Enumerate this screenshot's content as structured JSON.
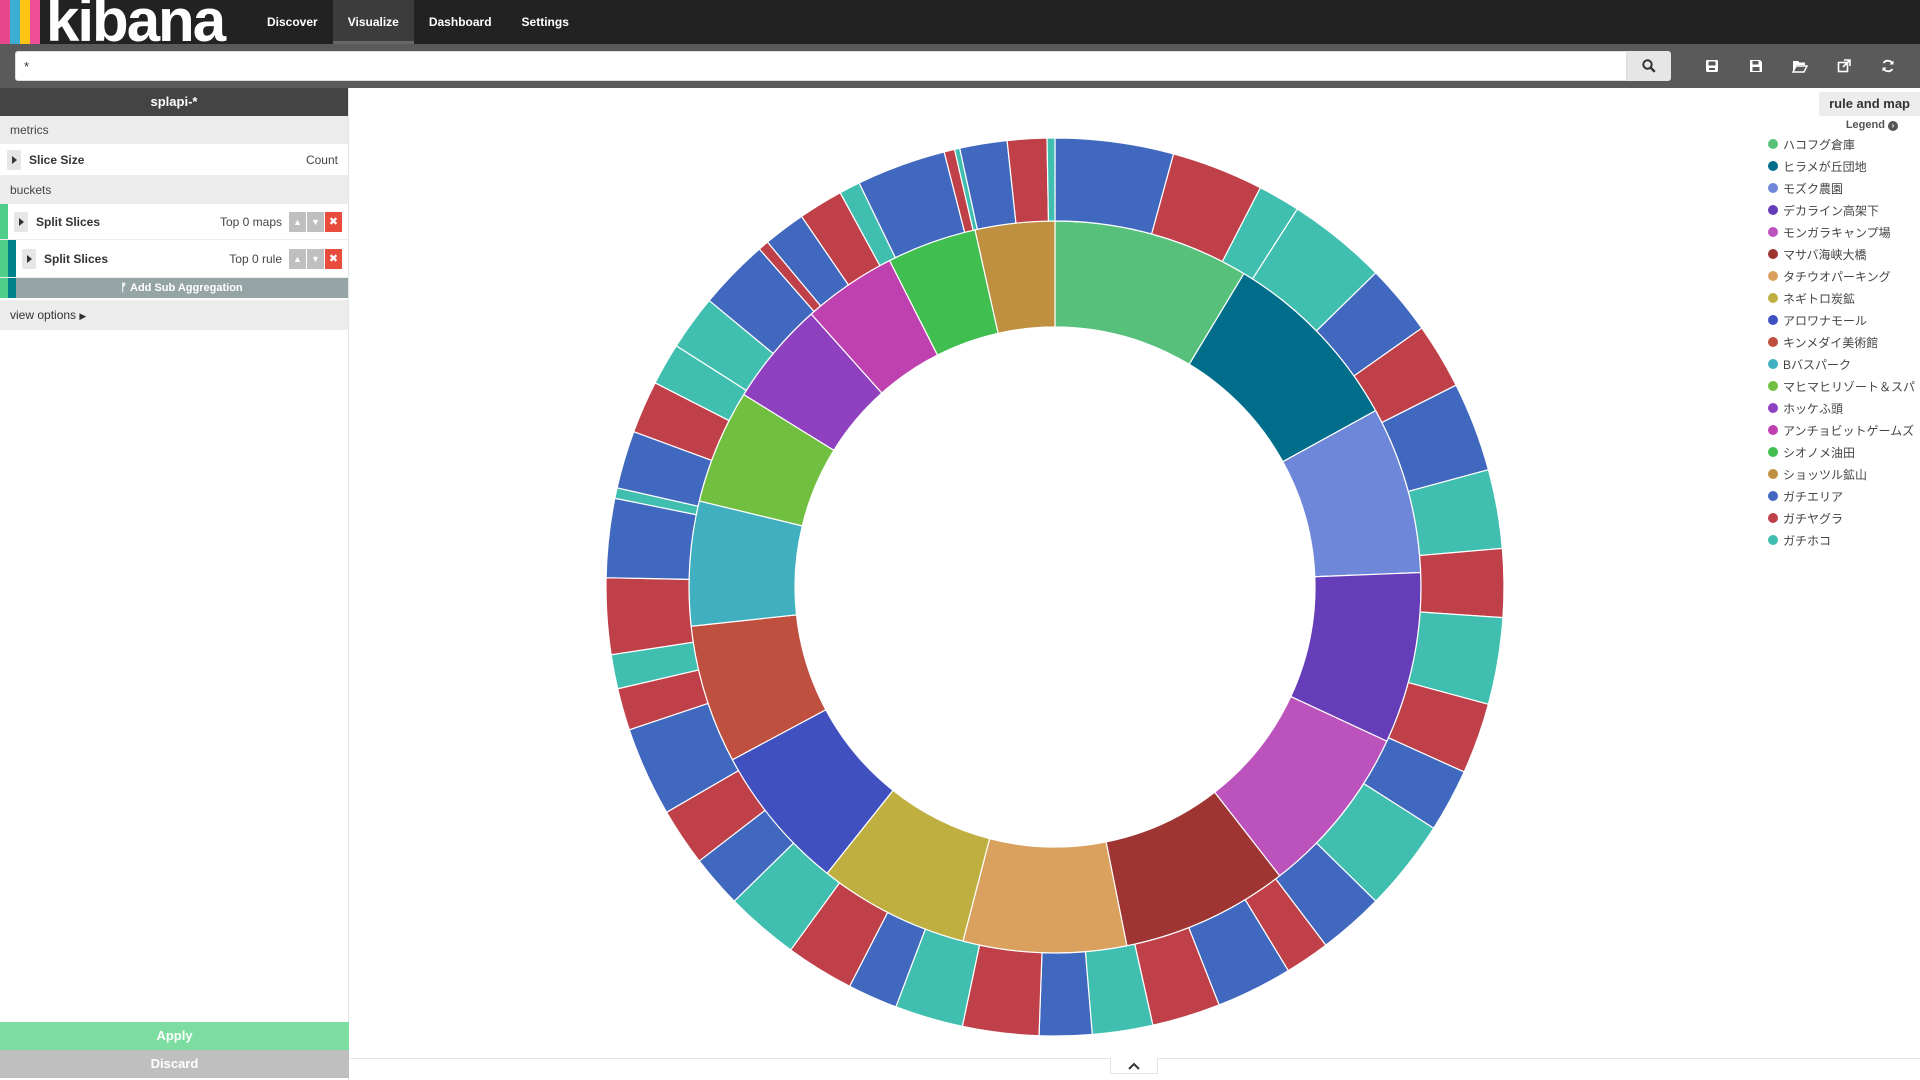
{
  "app": {
    "logo_text": "kibana",
    "logo_stripes": [
      "#e8488b",
      "#3caed2",
      "#fec514",
      "#8cc63e",
      "#f04e98",
      "#00bfb3"
    ]
  },
  "nav": {
    "items": [
      {
        "label": "Discover",
        "active": false
      },
      {
        "label": "Visualize",
        "active": true
      },
      {
        "label": "Dashboard",
        "active": false
      },
      {
        "label": "Settings",
        "active": false
      }
    ]
  },
  "search": {
    "value": "*",
    "button_icon": "search-icon",
    "tool_icons": [
      "new-visualization-icon",
      "save-icon",
      "open-icon",
      "share-icon",
      "refresh-icon"
    ]
  },
  "sidebar": {
    "index_pattern": "splapi-*",
    "metrics_header": "metrics",
    "metric": {
      "label": "Slice Size",
      "value": "Count"
    },
    "buckets_header": "buckets",
    "buckets": [
      {
        "label": "Split Slices",
        "summary": "Top 0 maps",
        "color": "#4fce8a"
      },
      {
        "label": "Split Slices",
        "summary": "Top 0 rule",
        "color": "#00828c"
      }
    ],
    "add_sub_label": "Add Sub Aggregation",
    "view_options": "view options",
    "apply": "Apply",
    "discard": "Discard"
  },
  "chart_data": {
    "type": "pie",
    "donut": true,
    "title": "rule and map",
    "legend_toggle": "Legend",
    "legend": [
      {
        "label": "ハコフグ倉庫",
        "color": "#57c17b"
      },
      {
        "label": "ヒラメが丘団地",
        "color": "#006e8a"
      },
      {
        "label": "モズク農園",
        "color": "#6f87d8"
      },
      {
        "label": "デカライン高架下",
        "color": "#663db8"
      },
      {
        "label": "モンガラキャンプ場",
        "color": "#bc52bc"
      },
      {
        "label": "マサバ海峡大橋",
        "color": "#9e3533"
      },
      {
        "label": "タチウオパーキング",
        "color": "#daa05d"
      },
      {
        "label": "ネギトロ炭鉱",
        "color": "#bfaf40"
      },
      {
        "label": "アロワナモール",
        "color": "#4050bf"
      },
      {
        "label": "キンメダイ美術館",
        "color": "#bf5040"
      },
      {
        "label": "Bバスパーク",
        "color": "#40afbf"
      },
      {
        "label": "マヒマヒリゾート＆スパ",
        "color": "#70bf40"
      },
      {
        "label": "ホッケふ頭",
        "color": "#8f40bf"
      },
      {
        "label": "アンチョビットゲームズ",
        "color": "#bf40af"
      },
      {
        "label": "シオノメ油田",
        "color": "#40bf50"
      },
      {
        "label": "ショッツル鉱山",
        "color": "#bf9040"
      },
      {
        "label": "ガチエリア",
        "color": "#4068bf"
      },
      {
        "label": "ガチヤグラ",
        "color": "#bf4048"
      },
      {
        "label": "ガチホコ",
        "color": "#40bfb0"
      }
    ],
    "inner": [
      {
        "label": "ハコフグ倉庫",
        "value": 9.6
      },
      {
        "label": "ヒラメが丘団地",
        "value": 9.3
      },
      {
        "label": "モズク農園",
        "value": 8.2
      },
      {
        "label": "デカライン高架下",
        "value": 8.4
      },
      {
        "label": "モンガラキャンプ場",
        "value": 8.4
      },
      {
        "label": "マサバ海峡大橋",
        "value": 8.2
      },
      {
        "label": "タチウオパーキング",
        "value": 8.0
      },
      {
        "label": "ネギトロ炭鉱",
        "value": 7.4
      },
      {
        "label": "アロワナモール",
        "value": 7.2
      },
      {
        "label": "キンメダイ美術館",
        "value": 6.8
      },
      {
        "label": "Bバスパーク",
        "value": 6.1
      },
      {
        "label": "マヒマヒリゾート＆スパ",
        "value": 5.6
      },
      {
        "label": "ホッケふ頭",
        "value": 5.1
      },
      {
        "label": "アンチョビットゲームズ",
        "value": 4.6
      },
      {
        "label": "シオノメ油田",
        "value": 4.4
      },
      {
        "label": "ショッツル鉱山",
        "value": 3.9
      }
    ],
    "outer": [
      {
        "label": "ガチエリア",
        "value": 4.5
      },
      {
        "label": "ガチヤグラ",
        "value": 3.5
      },
      {
        "label": "ガチホコ",
        "value": 1.6
      },
      {
        "label": "ガチホコ",
        "value": 3.8
      },
      {
        "label": "ガチエリア",
        "value": 2.7
      },
      {
        "label": "ガチヤグラ",
        "value": 2.5
      },
      {
        "label": "ガチエリア",
        "value": 3.4
      },
      {
        "label": "ガチホコ",
        "value": 3.0
      },
      {
        "label": "ガチヤグラ",
        "value": 2.6
      },
      {
        "label": "ガチホコ",
        "value": 3.3
      },
      {
        "label": "ガチヤグラ",
        "value": 2.7
      },
      {
        "label": "ガチエリア",
        "value": 2.4
      },
      {
        "label": "ガチホコ",
        "value": 3.5
      },
      {
        "label": "ガチエリア",
        "value": 2.5
      },
      {
        "label": "ガチヤグラ",
        "value": 1.7
      },
      {
        "label": "ガチエリア",
        "value": 2.9
      },
      {
        "label": "ガチヤグラ",
        "value": 2.6
      },
      {
        "label": "ガチホコ",
        "value": 2.3
      },
      {
        "label": "ガチエリア",
        "value": 2.0
      },
      {
        "label": "ガチヤグラ",
        "value": 2.9
      },
      {
        "label": "ガチホコ",
        "value": 2.6
      },
      {
        "label": "ガチエリア",
        "value": 1.9
      },
      {
        "label": "ガチヤグラ",
        "value": 2.6
      },
      {
        "label": "ガチホコ",
        "value": 2.8
      },
      {
        "label": "ガチエリア",
        "value": 2.0
      },
      {
        "label": "ガチヤグラ",
        "value": 2.2
      },
      {
        "label": "ガチエリア",
        "value": 3.4
      },
      {
        "label": "ガチヤグラ",
        "value": 1.6
      },
      {
        "label": "ガチホコ",
        "value": 1.3
      },
      {
        "label": "ガチヤグラ",
        "value": 2.9
      },
      {
        "label": "ガチエリア",
        "value": 3.0
      },
      {
        "label": "ガチホコ",
        "value": 0.4
      },
      {
        "label": "ガチエリア",
        "value": 2.2
      },
      {
        "label": "ガチヤグラ",
        "value": 2.0
      },
      {
        "label": "ガチホコ",
        "value": 1.6
      },
      {
        "label": "ガチホコ",
        "value": 2.1
      },
      {
        "label": "ガチエリア",
        "value": 2.7
      },
      {
        "label": "ガチヤグラ",
        "value": 0.4
      },
      {
        "label": "ガチエリア",
        "value": 1.6
      },
      {
        "label": "ガチヤグラ",
        "value": 1.7
      },
      {
        "label": "ガチホコ",
        "value": 0.8
      },
      {
        "label": "ガチエリア",
        "value": 3.4
      },
      {
        "label": "ガチヤグラ",
        "value": 0.4
      },
      {
        "label": "ガチホコ",
        "value": 0.2
      },
      {
        "label": "ガチエリア",
        "value": 1.8
      },
      {
        "label": "ガチヤグラ",
        "value": 1.5
      },
      {
        "label": "ガチホコ",
        "value": 0.3
      }
    ]
  }
}
